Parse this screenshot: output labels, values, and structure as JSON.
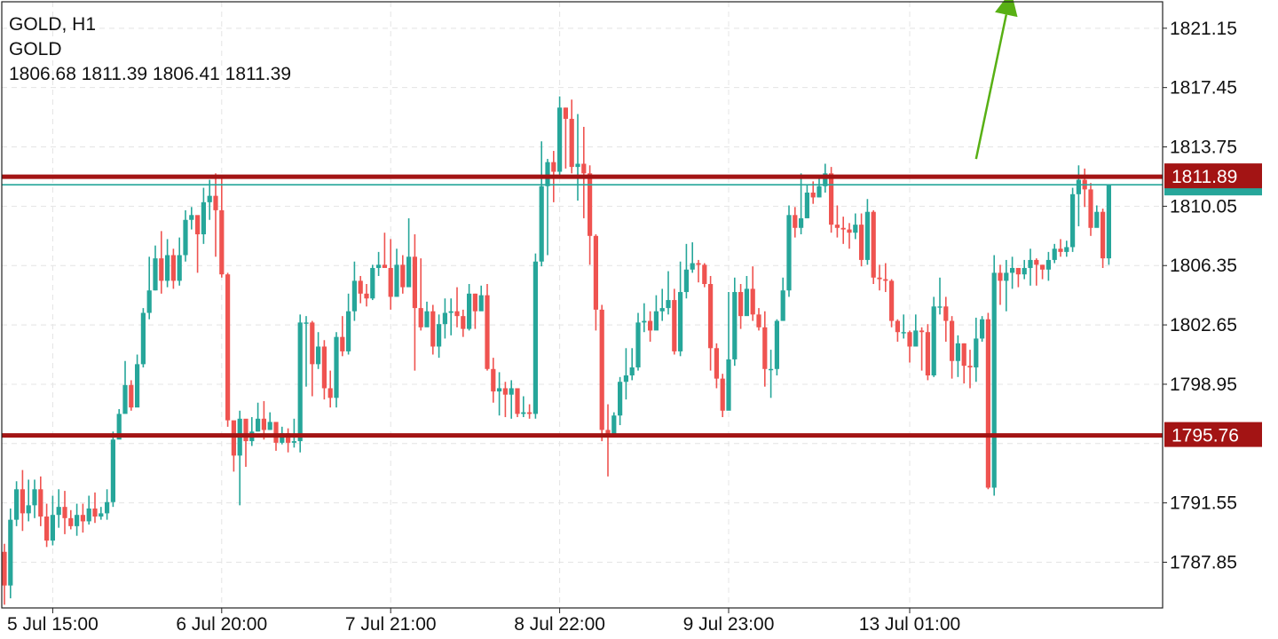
{
  "header": {
    "title": "GOLD, H1",
    "symbol": "GOLD",
    "ohlc": "1806.68 1811.39 1806.41 1811.39"
  },
  "colors": {
    "bull": "#26a69a",
    "bear": "#ef5350",
    "level": "#a31414",
    "bid_line": "#26a69a",
    "arrow": "#58b014",
    "grid": "#e4e4e4"
  },
  "chart_data": {
    "type": "candlestick",
    "title": "GOLD, H1",
    "x_tick_labels": [
      "5 Jul 15:00",
      "6 Jul 20:00",
      "7 Jul 21:00",
      "8 Jul 22:00",
      "9 Jul 23:00",
      "13 Jul 01:00"
    ],
    "y_tick_labels": [
      "1821.15",
      "1817.45",
      "1813.75",
      "1810.05",
      "1806.35",
      "1802.65",
      "1798.95",
      "1791.55",
      "1787.85"
    ],
    "y_ticks": [
      1821.15,
      1817.45,
      1813.75,
      1810.05,
      1806.35,
      1802.65,
      1798.95,
      1795.25,
      1791.55,
      1787.85
    ],
    "ylim": [
      1785.0,
      1822.8
    ],
    "grid": true,
    "levels": [
      {
        "value": 1811.89,
        "label": "1811.89"
      },
      {
        "value": 1795.76,
        "label": "1795.76"
      }
    ],
    "current_price": 1811.39,
    "arrow": {
      "from_index": 161,
      "from_price": 1813.0,
      "to_index": 166,
      "to_price": 1822.0
    },
    "candles": [
      [
        1788.5,
        1786.4,
        1789.0,
        1785.2
      ],
      [
        1786.4,
        1790.5,
        1791.2,
        1785.6
      ],
      [
        1790.5,
        1792.4,
        1792.9,
        1790.1
      ],
      [
        1792.4,
        1790.9,
        1793.6,
        1789.8
      ],
      [
        1790.9,
        1791.4,
        1793.0,
        1790.4
      ],
      [
        1791.4,
        1792.4,
        1793.0,
        1790.6
      ],
      [
        1792.4,
        1790.7,
        1793.2,
        1790.1
      ],
      [
        1790.7,
        1789.2,
        1791.5,
        1788.8
      ],
      [
        1789.2,
        1790.8,
        1792.0,
        1788.9
      ],
      [
        1790.8,
        1791.3,
        1792.4,
        1790.0
      ],
      [
        1791.3,
        1790.6,
        1792.3,
        1789.6
      ],
      [
        1790.6,
        1790.1,
        1791.1,
        1789.9
      ],
      [
        1790.1,
        1790.8,
        1791.5,
        1789.5
      ],
      [
        1790.8,
        1790.4,
        1791.5,
        1789.7
      ],
      [
        1790.4,
        1791.2,
        1792.0,
        1790.2
      ],
      [
        1791.2,
        1790.7,
        1792.2,
        1790.3
      ],
      [
        1790.7,
        1790.9,
        1791.3,
        1790.5
      ],
      [
        1790.9,
        1791.6,
        1792.4,
        1790.5
      ],
      [
        1791.6,
        1795.5,
        1796.0,
        1791.3
      ],
      [
        1795.5,
        1797.1,
        1797.4,
        1795.6
      ],
      [
        1797.1,
        1798.9,
        1800.4,
        1797.4
      ],
      [
        1798.9,
        1797.5,
        1799.2,
        1797.3
      ],
      [
        1797.5,
        1800.2,
        1800.8,
        1797.8
      ],
      [
        1800.2,
        1803.4,
        1803.7,
        1800.0
      ],
      [
        1803.4,
        1804.8,
        1806.9,
        1803.0
      ],
      [
        1804.8,
        1806.8,
        1807.6,
        1804.8
      ],
      [
        1806.8,
        1805.4,
        1808.5,
        1804.6
      ],
      [
        1805.4,
        1807.0,
        1808.0,
        1805.0
      ],
      [
        1807.0,
        1805.4,
        1807.4,
        1804.9
      ],
      [
        1805.4,
        1807.0,
        1808.1,
        1805.1
      ],
      [
        1807.0,
        1809.2,
        1809.8,
        1806.6
      ],
      [
        1809.2,
        1809.5,
        1810.0,
        1808.6
      ],
      [
        1809.5,
        1808.3,
        1808.8,
        1805.9
      ],
      [
        1808.3,
        1810.3,
        1811.2,
        1807.7
      ],
      [
        1810.3,
        1810.7,
        1811.7,
        1809.2
      ],
      [
        1810.7,
        1809.8,
        1812.1,
        1806.9
      ],
      [
        1809.8,
        1805.8,
        1811.9,
        1805.6
      ],
      [
        1805.8,
        1796.7,
        1805.9,
        1796.3
      ],
      [
        1796.7,
        1794.5,
        1795.8,
        1793.5
      ],
      [
        1794.5,
        1796.8,
        1797.3,
        1791.4
      ],
      [
        1796.8,
        1795.4,
        1795.8,
        1793.8
      ],
      [
        1795.4,
        1796.0,
        1796.9,
        1795.1
      ],
      [
        1796.0,
        1796.8,
        1797.8,
        1796.0
      ],
      [
        1796.8,
        1796.1,
        1797.9,
        1795.5
      ],
      [
        1796.1,
        1796.6,
        1797.2,
        1796.1
      ],
      [
        1796.6,
        1795.3,
        1796.0,
        1794.8
      ],
      [
        1795.3,
        1795.9,
        1796.3,
        1795.2
      ],
      [
        1795.9,
        1795.3,
        1796.2,
        1794.7
      ],
      [
        1795.3,
        1795.4,
        1796.8,
        1795.0
      ],
      [
        1795.4,
        1802.8,
        1803.3,
        1794.7
      ],
      [
        1802.8,
        1802.8,
        1803.2,
        1798.8
      ],
      [
        1802.8,
        1800.2,
        1802.9,
        1798.2
      ],
      [
        1800.2,
        1801.3,
        1802.2,
        1799.9
      ],
      [
        1801.3,
        1798.7,
        1801.7,
        1798.0
      ],
      [
        1798.7,
        1798.1,
        1799.8,
        1797.5
      ],
      [
        1798.1,
        1801.9,
        1802.2,
        1797.5
      ],
      [
        1801.9,
        1801.0,
        1803.2,
        1800.7
      ],
      [
        1801.0,
        1803.5,
        1804.6,
        1800.8
      ],
      [
        1803.5,
        1805.4,
        1806.6,
        1802.9
      ],
      [
        1805.4,
        1804.6,
        1805.7,
        1804.0
      ],
      [
        1804.6,
        1804.3,
        1805.2,
        1803.8
      ],
      [
        1804.3,
        1806.2,
        1806.4,
        1804.2
      ],
      [
        1806.2,
        1806.4,
        1807.2,
        1805.7
      ],
      [
        1806.4,
        1806.2,
        1808.4,
        1806.3
      ],
      [
        1806.2,
        1804.4,
        1808.0,
        1803.6
      ],
      [
        1804.4,
        1806.4,
        1807.4,
        1804.4
      ],
      [
        1806.4,
        1805.0,
        1807.0,
        1804.6
      ],
      [
        1805.0,
        1806.9,
        1809.3,
        1806.5
      ],
      [
        1806.9,
        1803.7,
        1808.3,
        1799.8
      ],
      [
        1803.7,
        1802.5,
        1806.8,
        1802.3
      ],
      [
        1802.5,
        1803.5,
        1804.1,
        1802.6
      ],
      [
        1803.5,
        1801.3,
        1803.9,
        1800.8
      ],
      [
        1801.3,
        1802.7,
        1803.3,
        1800.6
      ],
      [
        1802.7,
        1803.4,
        1804.3,
        1801.8
      ],
      [
        1803.4,
        1803.5,
        1804.3,
        1802.0
      ],
      [
        1803.5,
        1803.2,
        1805.0,
        1802.5
      ],
      [
        1803.2,
        1802.4,
        1803.6,
        1801.9
      ],
      [
        1802.4,
        1804.6,
        1805.2,
        1802.3
      ],
      [
        1804.6,
        1803.5,
        1804.6,
        1802.4
      ],
      [
        1803.5,
        1804.5,
        1805.1,
        1803.7
      ],
      [
        1804.5,
        1799.9,
        1805.2,
        1799.8
      ],
      [
        1799.9,
        1798.5,
        1800.6,
        1797.8
      ],
      [
        1798.5,
        1798.7,
        1799.7,
        1797.0
      ],
      [
        1798.7,
        1798.3,
        1799.1,
        1796.9
      ],
      [
        1798.3,
        1798.7,
        1799.2,
        1796.8
      ],
      [
        1798.7,
        1797.1,
        1798.3,
        1796.9
      ],
      [
        1797.1,
        1797.2,
        1798.2,
        1796.9
      ],
      [
        1797.2,
        1797.1,
        1797.7,
        1796.8
      ],
      [
        1797.1,
        1806.6,
        1807.1,
        1796.8
      ],
      [
        1806.6,
        1811.3,
        1814.1,
        1806.3
      ],
      [
        1811.3,
        1812.8,
        1813.0,
        1807.0
      ],
      [
        1812.8,
        1812.2,
        1813.5,
        1810.3
      ],
      [
        1812.2,
        1816.2,
        1816.9,
        1811.8
      ],
      [
        1816.2,
        1815.5,
        1816.2,
        1812.4
      ],
      [
        1815.5,
        1812.5,
        1816.7,
        1812.1
      ],
      [
        1812.5,
        1812.7,
        1815.8,
        1810.4
      ],
      [
        1812.7,
        1812.1,
        1815.0,
        1809.3
      ],
      [
        1812.1,
        1808.2,
        1812.6,
        1806.4
      ],
      [
        1808.2,
        1803.6,
        1808.3,
        1802.3
      ],
      [
        1803.6,
        1796.1,
        1803.9,
        1795.4
      ],
      [
        1796.1,
        1795.8,
        1797.7,
        1793.2
      ],
      [
        1795.8,
        1797.0,
        1797.2,
        1796.6
      ],
      [
        1797.0,
        1799.1,
        1799.4,
        1796.4
      ],
      [
        1799.1,
        1799.5,
        1801.2,
        1798.0
      ],
      [
        1799.5,
        1800.0,
        1801.2,
        1799.2
      ],
      [
        1800.0,
        1802.8,
        1803.4,
        1799.8
      ],
      [
        1802.8,
        1802.9,
        1804.0,
        1802.2
      ],
      [
        1802.9,
        1802.3,
        1803.5,
        1801.6
      ],
      [
        1802.3,
        1803.5,
        1804.5,
        1802.4
      ],
      [
        1803.5,
        1803.7,
        1804.9,
        1802.9
      ],
      [
        1803.7,
        1804.2,
        1806.0,
        1803.3
      ],
      [
        1804.2,
        1801.0,
        1804.9,
        1800.8
      ],
      [
        1801.0,
        1804.7,
        1806.6,
        1800.7
      ],
      [
        1804.7,
        1806.1,
        1807.7,
        1804.3
      ],
      [
        1806.1,
        1806.5,
        1807.8,
        1805.9
      ],
      [
        1806.5,
        1806.4,
        1806.7,
        1805.3
      ],
      [
        1806.4,
        1805.2,
        1806.5,
        1805.0
      ],
      [
        1805.2,
        1801.2,
        1805.7,
        1799.8
      ],
      [
        1801.2,
        1799.3,
        1801.5,
        1798.7
      ],
      [
        1799.3,
        1797.3,
        1799.6,
        1796.9
      ],
      [
        1797.3,
        1800.5,
        1804.7,
        1797.6
      ],
      [
        1800.5,
        1804.7,
        1805.6,
        1800.1
      ],
      [
        1804.7,
        1803.2,
        1805.2,
        1802.4
      ],
      [
        1803.2,
        1804.9,
        1805.7,
        1804.7
      ],
      [
        1804.9,
        1803.3,
        1806.3,
        1802.9
      ],
      [
        1803.3,
        1802.5,
        1803.7,
        1802.3
      ],
      [
        1802.5,
        1799.9,
        1803.5,
        1798.8
      ],
      [
        1799.9,
        1799.9,
        1801.1,
        1798.1
      ],
      [
        1799.9,
        1802.9,
        1803.0,
        1799.5
      ],
      [
        1802.9,
        1804.8,
        1805.6,
        1802.9
      ],
      [
        1804.8,
        1809.5,
        1810.1,
        1804.4
      ],
      [
        1809.5,
        1808.7,
        1810.0,
        1808.1
      ],
      [
        1808.7,
        1809.3,
        1812.1,
        1808.3
      ],
      [
        1809.3,
        1810.9,
        1811.4,
        1809.3
      ],
      [
        1810.9,
        1810.6,
        1811.6,
        1810.2
      ],
      [
        1810.6,
        1811.3,
        1811.9,
        1810.6
      ],
      [
        1811.3,
        1812.1,
        1812.7,
        1810.9
      ],
      [
        1812.1,
        1808.9,
        1812.5,
        1808.4
      ],
      [
        1808.9,
        1808.7,
        1810.1,
        1808.1
      ],
      [
        1808.7,
        1808.6,
        1809.4,
        1807.7
      ],
      [
        1808.6,
        1808.4,
        1809.0,
        1807.4
      ],
      [
        1808.4,
        1808.9,
        1809.6,
        1808.0
      ],
      [
        1808.9,
        1806.7,
        1809.6,
        1806.3
      ],
      [
        1806.7,
        1809.7,
        1810.5,
        1806.4
      ],
      [
        1809.7,
        1805.6,
        1809.8,
        1805.2
      ],
      [
        1805.6,
        1805.5,
        1806.4,
        1804.8
      ],
      [
        1805.5,
        1805.4,
        1806.5,
        1804.7
      ],
      [
        1805.4,
        1802.9,
        1805.5,
        1802.5
      ],
      [
        1802.9,
        1802.2,
        1803.0,
        1801.6
      ],
      [
        1802.2,
        1802.2,
        1803.3,
        1801.8
      ],
      [
        1802.2,
        1801.3,
        1802.3,
        1800.3
      ],
      [
        1801.3,
        1802.3,
        1803.3,
        1801.5
      ],
      [
        1802.3,
        1802.2,
        1802.5,
        1799.8
      ],
      [
        1802.2,
        1799.5,
        1802.7,
        1799.2
      ],
      [
        1799.5,
        1803.8,
        1804.4,
        1799.4
      ],
      [
        1803.8,
        1803.8,
        1805.6,
        1803.3
      ],
      [
        1803.8,
        1802.9,
        1804.4,
        1801.6
      ],
      [
        1802.9,
        1800.4,
        1803.2,
        1799.3
      ],
      [
        1800.4,
        1801.5,
        1802.0,
        1799.4
      ],
      [
        1801.5,
        1800.1,
        1801.5,
        1799.0
      ],
      [
        1800.1,
        1800.0,
        1801.1,
        1798.7
      ],
      [
        1800.0,
        1801.8,
        1803.1,
        1799.1
      ],
      [
        1801.8,
        1803.0,
        1803.2,
        1801.6
      ],
      [
        1803.0,
        1792.5,
        1803.4,
        1792.4
      ],
      [
        1792.5,
        1805.9,
        1807.0,
        1792.0
      ],
      [
        1805.9,
        1805.4,
        1806.4,
        1803.9
      ],
      [
        1805.4,
        1805.9,
        1806.7,
        1803.5
      ],
      [
        1805.9,
        1806.2,
        1806.9,
        1804.9
      ],
      [
        1806.2,
        1805.8,
        1806.2,
        1805.0
      ],
      [
        1805.8,
        1806.2,
        1806.7,
        1805.5
      ],
      [
        1806.2,
        1806.7,
        1807.4,
        1805.1
      ],
      [
        1806.7,
        1806.4,
        1806.8,
        1805.1
      ],
      [
        1806.4,
        1806.1,
        1806.4,
        1805.5
      ],
      [
        1806.1,
        1806.7,
        1807.2,
        1805.4
      ],
      [
        1806.7,
        1807.4,
        1807.7,
        1806.5
      ],
      [
        1807.4,
        1807.2,
        1808.0,
        1806.9
      ],
      [
        1807.2,
        1807.5,
        1807.9,
        1806.9
      ],
      [
        1807.5,
        1810.8,
        1811.2,
        1807.2
      ],
      [
        1810.8,
        1811.7,
        1812.6,
        1808.8
      ],
      [
        1811.7,
        1811.1,
        1812.4,
        1810.0
      ],
      [
        1811.1,
        1808.7,
        1811.5,
        1808.2
      ],
      [
        1808.7,
        1809.7,
        1810.1,
        1809.3
      ],
      [
        1809.7,
        1806.8,
        1809.9,
        1806.2
      ],
      [
        1806.8,
        1811.4,
        1811.4,
        1806.4
      ]
    ]
  },
  "axes": {
    "y_tick_labels": [
      "1821.15",
      "1817.45",
      "1813.75",
      "1810.05",
      "1806.35",
      "1802.65",
      "1798.95",
      "1791.55",
      "1787.85"
    ],
    "x_tick_labels": [
      "5 Jul 15:00",
      "6 Jul 20:00",
      "7 Jul 21:00",
      "8 Jul 22:00",
      "9 Jul 23:00",
      "13 Jul 01:00"
    ]
  },
  "price_tags": {
    "resistance": "1811.89",
    "support": "1795.76"
  }
}
